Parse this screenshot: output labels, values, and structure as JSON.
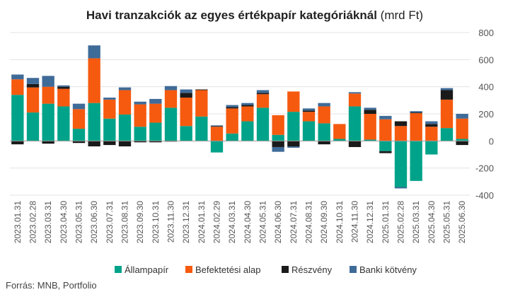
{
  "chart_data": {
    "type": "bar",
    "stacked": true,
    "title_bold": "Havi tranzakciók az egyes értékpapír kategóriáknál",
    "title_unit": "(mrd Ft)",
    "source": "Forrás: MNB, Portfolio",
    "ylim": [
      -400,
      800
    ],
    "yticks": [
      -400,
      -200,
      0,
      200,
      400,
      600,
      800
    ],
    "y_axis_position": "right",
    "grid": true,
    "legend_position": "bottom",
    "categories": [
      "2023.01.31",
      "2023.02.28",
      "2023.03.31",
      "2023.04.30",
      "2023.05.31",
      "2023.06.30",
      "2023.07.31",
      "2023.08.31",
      "2023.09.30",
      "2023.10.31",
      "2023.11.30",
      "2023.12.31",
      "2024.01.31",
      "2024.02.29",
      "2024.03.31",
      "2024.04.30",
      "2024.05.31",
      "2024.06.30",
      "2024.07.31",
      "2024.08.31",
      "2024.09.30",
      "2024.10.31",
      "2024.11.30",
      "2024.12.31",
      "2025.01.31",
      "2025.02.28",
      "2025.03.31",
      "2025.04.30",
      "2025.05.31",
      "2025.06.30"
    ],
    "series": [
      {
        "name": "Állampapír",
        "color": "#00a389",
        "values": [
          340,
          210,
          275,
          255,
          90,
          280,
          165,
          195,
          105,
          135,
          245,
          110,
          180,
          -85,
          55,
          145,
          245,
          45,
          215,
          145,
          130,
          15,
          255,
          10,
          -75,
          -340,
          -295,
          -100,
          95,
          15
        ]
      },
      {
        "name": "Befektetési alap",
        "color": "#f55a0f",
        "values": [
          115,
          185,
          125,
          130,
          145,
          330,
          140,
          180,
          165,
          140,
          130,
          210,
          195,
          105,
          185,
          110,
          100,
          145,
          150,
          70,
          125,
          110,
          95,
          190,
          160,
          110,
          205,
          105,
          210,
          150
        ]
      },
      {
        "name": "Részvény",
        "color": "#1a1a1a",
        "values": [
          -25,
          25,
          -20,
          15,
          -15,
          -40,
          -30,
          -40,
          -10,
          -10,
          -5,
          35,
          5,
          5,
          10,
          10,
          10,
          -45,
          -40,
          10,
          -25,
          0,
          -45,
          30,
          -15,
          35,
          5,
          20,
          70,
          -30
        ]
      },
      {
        "name": "Banki kötvény",
        "color": "#3f6b98",
        "values": [
          35,
          45,
          80,
          10,
          40,
          95,
          15,
          20,
          20,
          35,
          30,
          25,
          0,
          5,
          15,
          15,
          20,
          -35,
          -10,
          15,
          25,
          0,
          10,
          15,
          25,
          -10,
          10,
          20,
          15,
          35
        ]
      }
    ]
  }
}
